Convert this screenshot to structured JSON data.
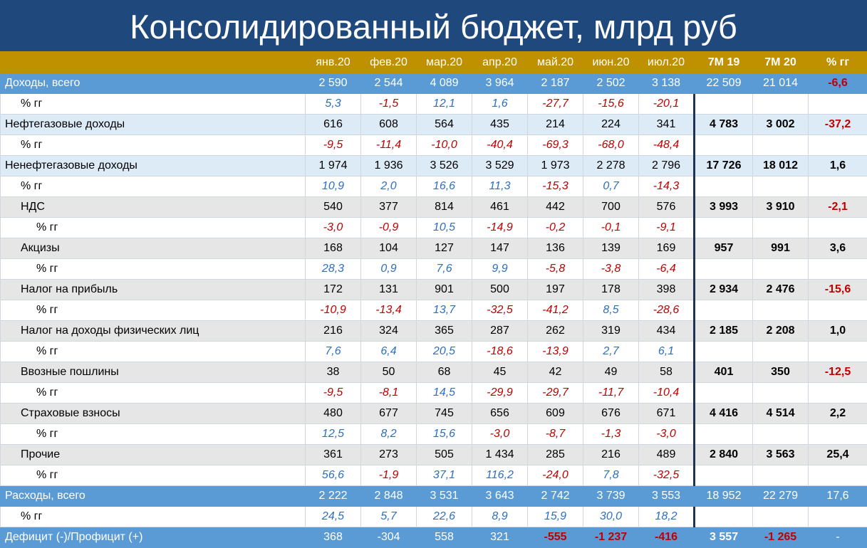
{
  "title": "Консолидированный бюджет, млрд руб",
  "table": {
    "columns": [
      "янв.20",
      "фев.20",
      "мар.20",
      "апр.20",
      "май.20",
      "июн.20",
      "июл.20",
      "7М 19",
      "7М 20",
      "% гг"
    ],
    "rows": [
      {
        "label": "Доходы, всего",
        "cells": [
          "2 590",
          "2 544",
          "4 089",
          "3 964",
          "2 187",
          "2 502",
          "3 138",
          "22 509",
          "21 014",
          "-6,6"
        ]
      },
      {
        "label": "% гг",
        "cells": [
          "5,3",
          "-1,5",
          "12,1",
          "1,6",
          "-27,7",
          "-15,6",
          "-20,1"
        ]
      },
      {
        "label": "Нефтегазовые доходы",
        "cells": [
          "616",
          "608",
          "564",
          "435",
          "214",
          "224",
          "341",
          "4 783",
          "3 002",
          "-37,2"
        ]
      },
      {
        "label": "% гг",
        "cells": [
          "-9,5",
          "-11,4",
          "-10,0",
          "-40,4",
          "-69,3",
          "-68,0",
          "-48,4"
        ]
      },
      {
        "label": "Ненефтегазовые доходы",
        "cells": [
          "1 974",
          "1 936",
          "3 526",
          "3 529",
          "1 973",
          "2 278",
          "2 796",
          "17 726",
          "18 012",
          "1,6"
        ]
      },
      {
        "label": "% гг",
        "cells": [
          "10,9",
          "2,0",
          "16,6",
          "11,3",
          "-15,3",
          "0,7",
          "-14,3"
        ]
      },
      {
        "label": "НДС",
        "cells": [
          "540",
          "377",
          "814",
          "461",
          "442",
          "700",
          "576",
          "3 993",
          "3 910",
          "-2,1"
        ]
      },
      {
        "label": "% гг",
        "cells": [
          "-3,0",
          "-0,9",
          "10,5",
          "-14,9",
          "-0,2",
          "-0,1",
          "-9,1"
        ]
      },
      {
        "label": "Акцизы",
        "cells": [
          "168",
          "104",
          "127",
          "147",
          "136",
          "139",
          "169",
          "957",
          "991",
          "3,6"
        ]
      },
      {
        "label": "% гг",
        "cells": [
          "28,3",
          "0,9",
          "7,6",
          "9,9",
          "-5,8",
          "-3,8",
          "-6,4"
        ]
      },
      {
        "label": "Налог на прибыль",
        "cells": [
          "172",
          "131",
          "901",
          "500",
          "197",
          "178",
          "398",
          "2 934",
          "2 476",
          "-15,6"
        ]
      },
      {
        "label": "% гг",
        "cells": [
          "-10,9",
          "-13,4",
          "13,7",
          "-32,5",
          "-41,2",
          "8,5",
          "-28,6"
        ]
      },
      {
        "label": "Налог на доходы физических лиц",
        "cells": [
          "216",
          "324",
          "365",
          "287",
          "262",
          "319",
          "434",
          "2 185",
          "2 208",
          "1,0"
        ]
      },
      {
        "label": "% гг",
        "cells": [
          "7,6",
          "6,4",
          "20,5",
          "-18,6",
          "-13,9",
          "2,7",
          "6,1"
        ]
      },
      {
        "label": "Ввозные пошлины",
        "cells": [
          "38",
          "50",
          "68",
          "45",
          "42",
          "49",
          "58",
          "401",
          "350",
          "-12,5"
        ]
      },
      {
        "label": "% гг",
        "cells": [
          "-9,5",
          "-8,1",
          "14,5",
          "-29,9",
          "-29,7",
          "-11,7",
          "-10,4"
        ]
      },
      {
        "label": "Страховые взносы",
        "cells": [
          "480",
          "677",
          "745",
          "656",
          "609",
          "676",
          "671",
          "4 416",
          "4 514",
          "2,2"
        ]
      },
      {
        "label": "% гг",
        "cells": [
          "12,5",
          "8,2",
          "15,6",
          "-3,0",
          "-8,7",
          "-1,3",
          "-3,0"
        ]
      },
      {
        "label": "Прочие",
        "cells": [
          "361",
          "273",
          "505",
          "1 434",
          "285",
          "216",
          "489",
          "2 840",
          "3 563",
          "25,4"
        ]
      },
      {
        "label": "% гг",
        "cells": [
          "56,6",
          "-1,9",
          "37,1",
          "116,2",
          "-24,0",
          "7,8",
          "-32,5"
        ]
      },
      {
        "label": "Расходы, всего",
        "cells": [
          "2 222",
          "2 848",
          "3 531",
          "3 643",
          "2 742",
          "3 739",
          "3 553",
          "18 952",
          "22 279",
          "17,6"
        ]
      },
      {
        "label": "% гг",
        "cells": [
          "24,5",
          "5,7",
          "22,6",
          "8,9",
          "15,9",
          "30,0",
          "18,2"
        ]
      },
      {
        "label": "Дефицит (-)/Профицит (+)",
        "cells": [
          "368",
          "-304",
          "558",
          "321",
          "-555",
          "-1 237",
          "-416",
          "3 557",
          "-1 265",
          "-"
        ]
      }
    ]
  }
}
